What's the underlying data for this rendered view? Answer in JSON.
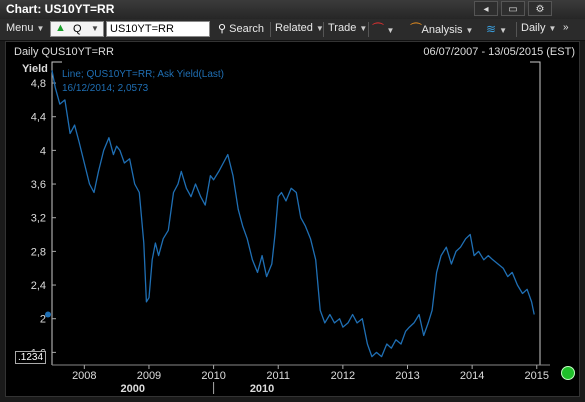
{
  "window": {
    "title": "Chart: US10YT=RR"
  },
  "window_buttons": {
    "back": "◂",
    "restore": "▭",
    "settings": "⚙"
  },
  "toolbar": {
    "menu_label": "Menu",
    "quote_label": "Q",
    "ric_value": "US10YT=RR",
    "search_label": "Search",
    "related_label": "Related",
    "trade_label": "Trade",
    "analysis_label": "Analysis",
    "interval_label": "Daily"
  },
  "chart": {
    "title": "Daily QUS10YT=RR",
    "date_range": "06/07/2007 - 13/05/2015 (EST)",
    "y_axis_label": "Yield",
    "legend_line1": "Line; QUS10YT=RR; Ask Yield(Last)",
    "legend_line2": "16/12/2014; 2,0573",
    "last_value_tag": ".1234",
    "status_color": "#1fbf2a",
    "line_color": "#1f6fb4"
  },
  "chart_data": {
    "type": "line",
    "x_unit": "year",
    "xlim": [
      2007.5,
      2015.05
    ],
    "ylim": [
      1.45,
      5.05
    ],
    "y_ticks": [
      "1,6",
      "2",
      "2,4",
      "2,8",
      "3,2",
      "3,6",
      "4",
      "4,4",
      "4,8"
    ],
    "y_tick_values": [
      1.6,
      2.0,
      2.4,
      2.8,
      3.2,
      3.6,
      4.0,
      4.4,
      4.8
    ],
    "x_ticks": [
      "2008",
      "2009",
      "2010",
      "2011",
      "2012",
      "2013",
      "2014",
      "2015"
    ],
    "x_tick_values": [
      2008,
      2009,
      2010,
      2011,
      2012,
      2013,
      2014,
      2015
    ],
    "decade_labels": [
      "2000",
      "2010"
    ],
    "decade_positions": [
      2008.75,
      2010.75
    ],
    "series": [
      {
        "x": [
          2007.5,
          2007.55,
          2007.62,
          2007.7,
          2007.78,
          2007.85,
          2007.92,
          2008.0,
          2008.08,
          2008.15,
          2008.22,
          2008.3,
          2008.38,
          2008.45,
          2008.5,
          2008.55,
          2008.62,
          2008.7,
          2008.78,
          2008.85,
          2008.92,
          2008.96,
          2009.0,
          2009.05,
          2009.1,
          2009.15,
          2009.22,
          2009.3,
          2009.38,
          2009.45,
          2009.5,
          2009.58,
          2009.65,
          2009.72,
          2009.8,
          2009.87,
          2009.95,
          2010.0,
          2010.08,
          2010.15,
          2010.22,
          2010.3,
          2010.38,
          2010.45,
          2010.52,
          2010.6,
          2010.68,
          2010.75,
          2010.82,
          2010.9,
          2010.95,
          2011.0,
          2011.05,
          2011.12,
          2011.2,
          2011.28,
          2011.35,
          2011.42,
          2011.5,
          2011.58,
          2011.65,
          2011.72,
          2011.8,
          2011.87,
          2011.95,
          2012.0,
          2012.08,
          2012.15,
          2012.22,
          2012.3,
          2012.38,
          2012.45,
          2012.52,
          2012.6,
          2012.68,
          2012.75,
          2012.82,
          2012.9,
          2012.97,
          2013.03,
          2013.1,
          2013.18,
          2013.25,
          2013.32,
          2013.38,
          2013.45,
          2013.52,
          2013.6,
          2013.68,
          2013.75,
          2013.82,
          2013.9,
          2013.97,
          2014.03,
          2014.1,
          2014.18,
          2014.25,
          2014.32,
          2014.4,
          2014.48,
          2014.55,
          2014.62,
          2014.7,
          2014.78,
          2014.85,
          2014.92,
          2014.96
        ],
        "y": [
          4.95,
          4.75,
          4.55,
          4.6,
          4.2,
          4.3,
          4.1,
          3.85,
          3.6,
          3.5,
          3.75,
          4.0,
          4.15,
          3.95,
          4.05,
          4.0,
          3.85,
          3.9,
          3.6,
          3.5,
          2.9,
          2.2,
          2.25,
          2.7,
          2.9,
          2.75,
          2.95,
          3.05,
          3.5,
          3.6,
          3.75,
          3.55,
          3.45,
          3.6,
          3.45,
          3.35,
          3.7,
          3.65,
          3.75,
          3.85,
          3.95,
          3.7,
          3.3,
          3.1,
          2.95,
          2.7,
          2.55,
          2.75,
          2.5,
          2.65,
          3.0,
          3.45,
          3.5,
          3.4,
          3.55,
          3.5,
          3.2,
          3.1,
          2.95,
          2.7,
          2.1,
          1.95,
          2.05,
          1.95,
          2.0,
          1.9,
          1.95,
          2.05,
          1.95,
          2.0,
          1.7,
          1.55,
          1.6,
          1.55,
          1.7,
          1.65,
          1.75,
          1.7,
          1.85,
          1.9,
          1.95,
          2.05,
          1.8,
          1.95,
          2.1,
          2.55,
          2.75,
          2.85,
          2.65,
          2.8,
          2.85,
          2.95,
          3.0,
          2.75,
          2.8,
          2.7,
          2.75,
          2.7,
          2.65,
          2.6,
          2.5,
          2.55,
          2.4,
          2.3,
          2.35,
          2.2,
          2.05
        ]
      }
    ]
  }
}
